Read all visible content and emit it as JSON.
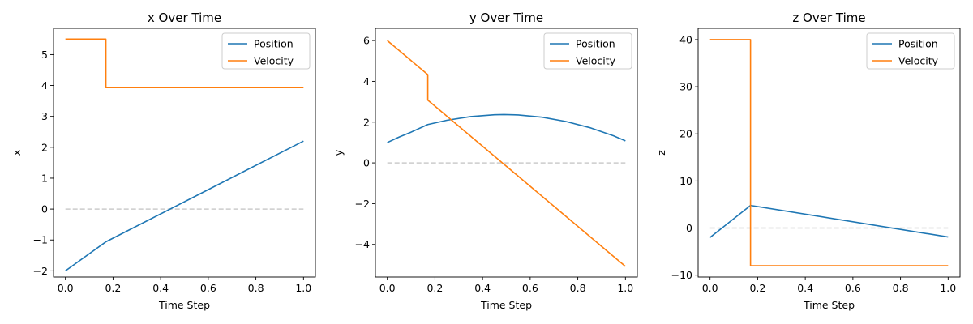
{
  "chart_data": [
    {
      "type": "line",
      "title": "x Over Time",
      "xlabel": "Time Step",
      "ylabel": "x",
      "xlim": [
        -0.05,
        1.05
      ],
      "ylim": [
        -2.2,
        5.85
      ],
      "xticks": [
        0.0,
        0.2,
        0.4,
        0.6,
        0.8,
        1.0
      ],
      "xtick_labels": [
        "0.0",
        "0.2",
        "0.4",
        "0.6",
        "0.8",
        "1.0"
      ],
      "yticks": [
        -2,
        -1,
        0,
        1,
        2,
        3,
        4,
        5
      ],
      "ytick_labels": [
        "−2",
        "−1",
        "0",
        "1",
        "2",
        "3",
        "4",
        "5"
      ],
      "legend": "top-right",
      "reference_line": {
        "y": 0,
        "x_from": 0,
        "x_to": 1,
        "color": "#cccccc",
        "style": "dashed"
      },
      "series": [
        {
          "name": "Position",
          "color": "#1f77b4",
          "x": [
            0,
            0.17,
            1.0
          ],
          "y": [
            -2.0,
            -1.06,
            2.2
          ]
        },
        {
          "name": "Velocity",
          "color": "#ff7f0e",
          "x": [
            0,
            0.17,
            0.17,
            1.0
          ],
          "y": [
            5.5,
            5.5,
            3.93,
            3.93
          ]
        }
      ]
    },
    {
      "type": "line",
      "title": "y Over Time",
      "xlabel": "Time Step",
      "ylabel": "y",
      "xlim": [
        -0.05,
        1.05
      ],
      "ylim": [
        -5.6,
        6.6
      ],
      "xticks": [
        0.0,
        0.2,
        0.4,
        0.6,
        0.8,
        1.0
      ],
      "xtick_labels": [
        "0.0",
        "0.2",
        "0.4",
        "0.6",
        "0.8",
        "1.0"
      ],
      "yticks": [
        -4,
        -2,
        0,
        2,
        4,
        6
      ],
      "ytick_labels": [
        "−4",
        "−2",
        "0",
        "2",
        "4",
        "6"
      ],
      "legend": "top-right",
      "reference_line": {
        "y": 0,
        "x_from": 0,
        "x_to": 1,
        "color": "#cccccc",
        "style": "dashed"
      },
      "series": [
        {
          "name": "Position",
          "color": "#1f77b4",
          "x": [
            0,
            0.05,
            0.1,
            0.17,
            0.25,
            0.35,
            0.45,
            0.49,
            0.55,
            0.65,
            0.75,
            0.85,
            0.95,
            1.0
          ],
          "y": [
            1.0,
            1.27,
            1.51,
            1.88,
            2.09,
            2.27,
            2.36,
            2.37,
            2.35,
            2.24,
            2.03,
            1.73,
            1.33,
            1.08
          ]
        },
        {
          "name": "Velocity",
          "color": "#ff7f0e",
          "x": [
            0,
            0.17,
            0.17,
            1.0
          ],
          "y": [
            6.0,
            4.33,
            3.08,
            -5.08
          ]
        }
      ]
    },
    {
      "type": "line",
      "title": "z Over Time",
      "xlabel": "Time Step",
      "ylabel": "z",
      "xlim": [
        -0.05,
        1.05
      ],
      "ylim": [
        -10.4,
        42.4
      ],
      "xticks": [
        0.0,
        0.2,
        0.4,
        0.6,
        0.8,
        1.0
      ],
      "xtick_labels": [
        "0.0",
        "0.2",
        "0.4",
        "0.6",
        "0.8",
        "1.0"
      ],
      "yticks": [
        -10,
        0,
        10,
        20,
        30,
        40
      ],
      "ytick_labels": [
        "−10",
        "0",
        "10",
        "20",
        "30",
        "40"
      ],
      "legend": "top-right",
      "reference_line": {
        "y": 0,
        "x_from": 0,
        "x_to": 1,
        "color": "#cccccc",
        "style": "dashed"
      },
      "series": [
        {
          "name": "Position",
          "color": "#1f77b4",
          "x": [
            0,
            0.17,
            1.0
          ],
          "y": [
            -2.0,
            4.8,
            -1.9
          ]
        },
        {
          "name": "Velocity",
          "color": "#ff7f0e",
          "x": [
            0,
            0.17,
            0.17,
            1.0
          ],
          "y": [
            40.0,
            40.0,
            -8.0,
            -8.0
          ]
        }
      ]
    }
  ]
}
